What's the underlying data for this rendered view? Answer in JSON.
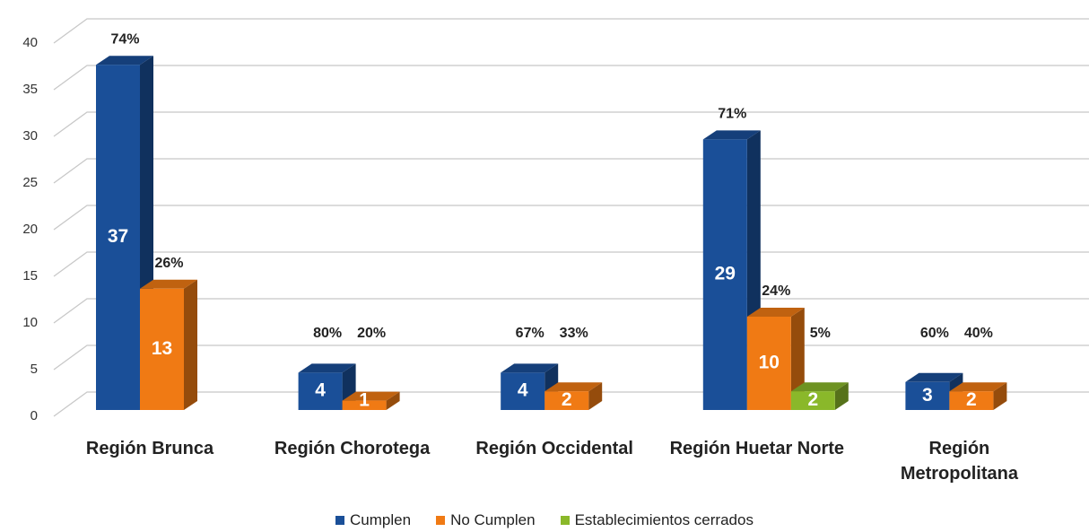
{
  "chart_data": {
    "type": "bar3d",
    "categories": [
      "Región Brunca",
      "Región Chorotega",
      "Región Occidental",
      "Región Huetar Norte",
      "Región Metropolitana"
    ],
    "series": [
      {
        "name": "Cumplen",
        "color": "#1a4f98",
        "values": [
          37,
          4,
          4,
          29,
          3
        ],
        "percent_labels": [
          "74%",
          "80%",
          "67%",
          "71%",
          "60%"
        ]
      },
      {
        "name": "No Cumplen",
        "color": "#f07a14",
        "values": [
          13,
          1,
          2,
          10,
          2
        ],
        "percent_labels": [
          "26%",
          "20%",
          "33%",
          "24%",
          "40%"
        ]
      },
      {
        "name": "Establecimientos cerrados",
        "color": "#8ab82a",
        "values": [
          null,
          null,
          null,
          2,
          null
        ],
        "percent_labels": [
          null,
          null,
          null,
          "5%",
          null
        ]
      }
    ],
    "ylim": [
      0,
      40
    ],
    "yticks": [
      0,
      5,
      10,
      15,
      20,
      25,
      30,
      35,
      40
    ],
    "grid": true,
    "legend": "bottom"
  }
}
